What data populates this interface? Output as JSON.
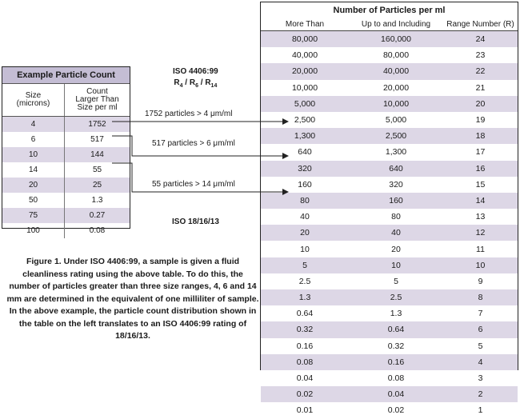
{
  "left_table": {
    "title": "Example Particle Count",
    "col1_header": "Size\n(microns)",
    "col2_header": "Count\nLarger Than\nSize per ml",
    "rows": [
      {
        "size": "4",
        "count": "1752"
      },
      {
        "size": "6",
        "count": "517"
      },
      {
        "size": "10",
        "count": "144"
      },
      {
        "size": "14",
        "count": "55"
      },
      {
        "size": "20",
        "count": "25"
      },
      {
        "size": "50",
        "count": "1.3"
      },
      {
        "size": "75",
        "count": "0.27"
      },
      {
        "size": "100",
        "count": "0.08"
      }
    ]
  },
  "iso_top": {
    "line1": "ISO 4406:99",
    "line2": "R4 / R6 / R14"
  },
  "iso_bottom": "ISO 18/16/13",
  "annotations": [
    {
      "text": "1752 particles > 4 μm/ml"
    },
    {
      "text": "517 particles > 6 μm/ml"
    },
    {
      "text": "55 particles > 14 μm/ml"
    }
  ],
  "right_table": {
    "title": "Number of Particles per ml",
    "headers": [
      "More Than",
      "Up to and Including",
      "Range Number (R)"
    ],
    "rows": [
      [
        "80,000",
        "160,000",
        "24"
      ],
      [
        "40,000",
        "80,000",
        "23"
      ],
      [
        "20,000",
        "40,000",
        "22"
      ],
      [
        "10,000",
        "20,000",
        "21"
      ],
      [
        "5,000",
        "10,000",
        "20"
      ],
      [
        "2,500",
        "5,000",
        "19"
      ],
      [
        "1,300",
        "2,500",
        "18"
      ],
      [
        "640",
        "1,300",
        "17"
      ],
      [
        "320",
        "640",
        "16"
      ],
      [
        "160",
        "320",
        "15"
      ],
      [
        "80",
        "160",
        "14"
      ],
      [
        "40",
        "80",
        "13"
      ],
      [
        "20",
        "40",
        "12"
      ],
      [
        "10",
        "20",
        "11"
      ],
      [
        "5",
        "10",
        "10"
      ],
      [
        "2.5",
        "5",
        "9"
      ],
      [
        "1.3",
        "2.5",
        "8"
      ],
      [
        "0.64",
        "1.3",
        "7"
      ],
      [
        "0.32",
        "0.64",
        "6"
      ],
      [
        "0.16",
        "0.32",
        "5"
      ],
      [
        "0.08",
        "0.16",
        "4"
      ],
      [
        "0.04",
        "0.08",
        "3"
      ],
      [
        "0.02",
        "0.04",
        "2"
      ],
      [
        "0.01",
        "0.02",
        "1"
      ]
    ]
  },
  "caption": "Figure 1. Under ISO 4406:99, a sample is given a fluid cleanliness rating using the above table. To do this, the number of particles greater than three size ranges, 4, 6 and 14 mm are determined in the equivalent of one milliliter of sample. In the above example, the particle count distribution shown in the table on the left translates to an ISO 4406:99 rating of 18/16/13."
}
